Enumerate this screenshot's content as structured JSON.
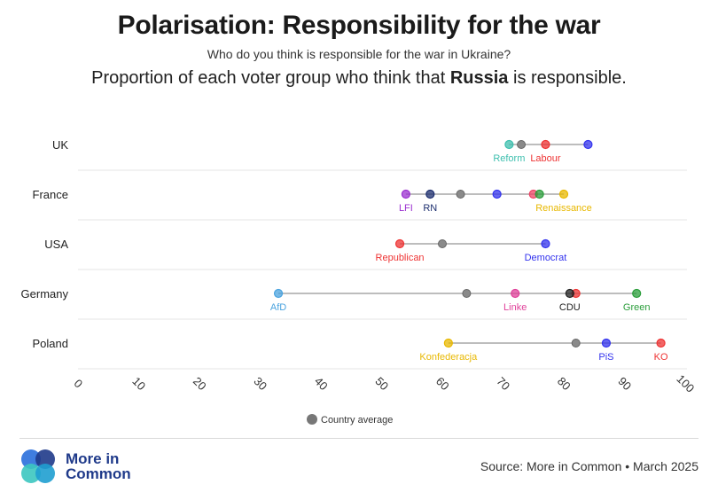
{
  "header": {
    "title": "Polarisation: Responsibility for the war",
    "subtitle": "Who do you think is responsible for the war in Ukraine?",
    "headline_before": "Proportion of each voter group who think that ",
    "headline_bold": "Russia",
    "headline_after": " is responsible."
  },
  "chart_data": {
    "type": "dot-range",
    "xlim": [
      0,
      100
    ],
    "xticks": [
      "0",
      "10",
      "20",
      "30",
      "40",
      "50",
      "60",
      "70",
      "80",
      "90",
      "100"
    ],
    "legend": {
      "label": "Country average",
      "placement": "bottom-center",
      "color": "#888888"
    },
    "rows": [
      {
        "country": "UK",
        "range": [
          71,
          84
        ],
        "average": 73,
        "points": [
          {
            "party": "Reform",
            "value": 71,
            "color": "#3dbfae",
            "show_label": true
          },
          {
            "party": "Labour",
            "value": 77,
            "color": "#ee3333",
            "show_label": true
          },
          {
            "party": "",
            "value": 84,
            "color": "#3333ee",
            "show_label": false
          }
        ]
      },
      {
        "country": "France",
        "range": [
          54,
          80
        ],
        "average": 63,
        "points": [
          {
            "party": "LFI",
            "value": 54,
            "color": "#9b30d0",
            "show_label": true
          },
          {
            "party": "RN",
            "value": 58,
            "color": "#1d2f6f",
            "show_label": true
          },
          {
            "party": "",
            "value": 69,
            "color": "#3333ee",
            "show_label": false
          },
          {
            "party": "",
            "value": 75,
            "color": "#ee4466",
            "show_label": false
          },
          {
            "party": "",
            "value": 76,
            "color": "#2a9d3a",
            "show_label": false
          },
          {
            "party": "Renaissance",
            "value": 80,
            "color": "#e8b800",
            "show_label": true
          }
        ]
      },
      {
        "country": "USA",
        "range": [
          53,
          77
        ],
        "average": 60,
        "points": [
          {
            "party": "Republican",
            "value": 53,
            "color": "#ee3333",
            "show_label": true
          },
          {
            "party": "Democrat",
            "value": 77,
            "color": "#3333ee",
            "show_label": true
          }
        ]
      },
      {
        "country": "Germany",
        "range": [
          33,
          92
        ],
        "average": 64,
        "points": [
          {
            "party": "AfD",
            "value": 33,
            "color": "#4aa3df",
            "show_label": true
          },
          {
            "party": "Linke",
            "value": 72,
            "color": "#e0409a",
            "show_label": true
          },
          {
            "party": "",
            "value": 82,
            "color": "#ee3333",
            "show_label": false
          },
          {
            "party": "CDU",
            "value": 81,
            "color": "#222222",
            "show_label": true
          },
          {
            "party": "Green",
            "value": 92,
            "color": "#2a9d3a",
            "show_label": true
          }
        ]
      },
      {
        "country": "Poland",
        "range": [
          61,
          96
        ],
        "average": 82,
        "points": [
          {
            "party": "Konfederacja",
            "value": 61,
            "color": "#e8b800",
            "show_label": true
          },
          {
            "party": "PiS",
            "value": 87,
            "color": "#3333ee",
            "show_label": true
          },
          {
            "party": "KO",
            "value": 96,
            "color": "#ee3333",
            "show_label": true
          }
        ]
      }
    ]
  },
  "footer": {
    "logo_line1": "More in",
    "logo_line2": "Common",
    "source": "Source: More in Common • March 2025"
  }
}
